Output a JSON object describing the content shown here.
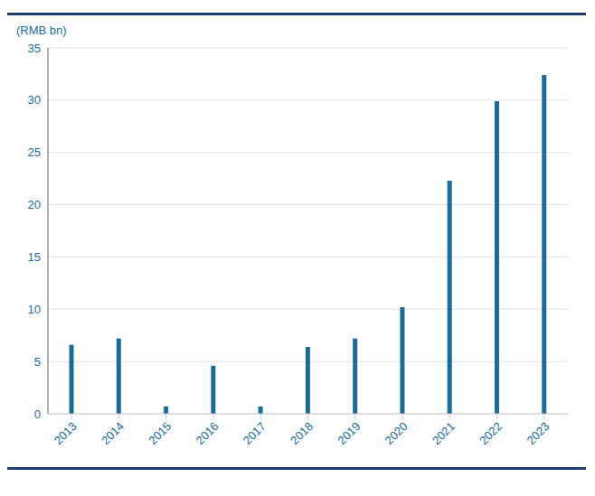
{
  "chart_data": {
    "type": "bar",
    "ylabel": "(RMB bn)",
    "categories": [
      "2013",
      "2014",
      "2015",
      "2016",
      "2017",
      "2018",
      "2019",
      "2020",
      "2021",
      "2022",
      "2023"
    ],
    "values": [
      6.6,
      7.2,
      0.7,
      4.6,
      0.7,
      6.4,
      7.2,
      10.2,
      22.3,
      29.9,
      32.4
    ],
    "color": "#1b6a9c",
    "ylim": [
      0,
      35
    ],
    "yticks": [
      0,
      5,
      10,
      15,
      20,
      25,
      30,
      35
    ],
    "grid": true
  }
}
